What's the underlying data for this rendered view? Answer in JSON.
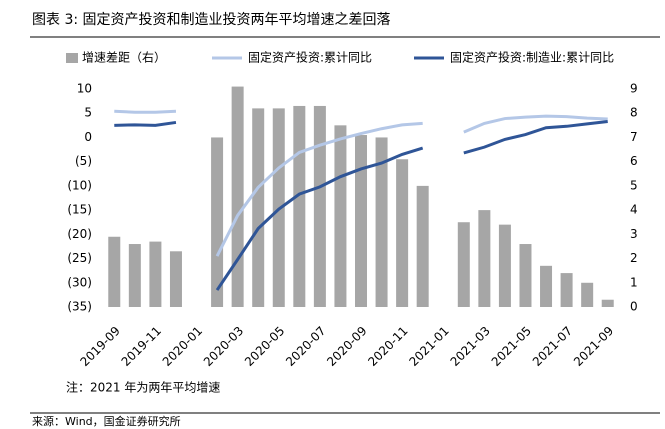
{
  "chart_data": {
    "type": "bar_line",
    "title": "图表 3:  固定资产投资和制造业投资两年平均增速之差回落",
    "note": "注：2021 年为两年平均增速",
    "source": "来源：Wind，国金证券研究所",
    "categories": [
      "2019-09",
      null,
      "2019-11",
      null,
      "2020-01",
      null,
      "2020-03",
      null,
      "2020-05",
      null,
      "2020-07",
      null,
      "2020-09",
      null,
      "2020-11",
      null,
      "2021-01",
      null,
      "2021-03",
      null,
      "2021-05",
      null,
      "2021-07",
      null,
      "2021-09"
    ],
    "series": [
      {
        "name": "增速差距（右）",
        "color": "#a6a6a6",
        "kind": "bar",
        "axis": "y2",
        "values": [
          2.9,
          2.6,
          2.7,
          2.3,
          null,
          7.0,
          9.1,
          8.2,
          8.2,
          8.3,
          8.3,
          7.5,
          7.1,
          7.0,
          6.1,
          5.0,
          null,
          3.5,
          4.0,
          3.4,
          2.6,
          1.7,
          1.4,
          1.0,
          0.3
        ]
      },
      {
        "name": "固定资产投资:累计同比",
        "color": "#b4c7e7",
        "kind": "line",
        "values": [
          5.4,
          5.2,
          5.2,
          5.4,
          null,
          -24.5,
          -16.1,
          -10.3,
          -6.3,
          -3.1,
          -1.6,
          -0.3,
          0.8,
          1.8,
          2.6,
          2.9,
          null,
          1.1,
          2.9,
          3.9,
          4.2,
          4.4,
          4.3,
          4.0,
          3.8
        ]
      },
      {
        "name": "固定资产投资:制造业:累计同比",
        "color": "#2f5597",
        "kind": "line",
        "values": [
          2.5,
          2.6,
          2.5,
          3.1,
          null,
          -31.5,
          -25.2,
          -18.8,
          -14.8,
          -11.7,
          -10.2,
          -8.1,
          -6.5,
          -5.3,
          -3.5,
          -2.2,
          null,
          -3.2,
          -2.0,
          -0.4,
          0.6,
          2.0,
          2.3,
          2.8,
          3.3
        ]
      }
    ],
    "ylim": [
      -35,
      10
    ],
    "yticks": [
      10,
      5,
      0,
      {
        "value": -5,
        "label": "(5)"
      },
      {
        "value": -10,
        "label": "(10)"
      },
      {
        "value": -15,
        "label": "(15)"
      },
      {
        "value": -20,
        "label": "(20)"
      },
      {
        "value": -25,
        "label": "(25)"
      },
      {
        "value": -30,
        "label": "(30)"
      },
      {
        "value": -35,
        "label": "(35)"
      }
    ],
    "y2lim": [
      0,
      9
    ],
    "y2ticks": [
      0,
      1,
      2,
      3,
      4,
      5,
      6,
      7,
      8,
      9
    ]
  }
}
